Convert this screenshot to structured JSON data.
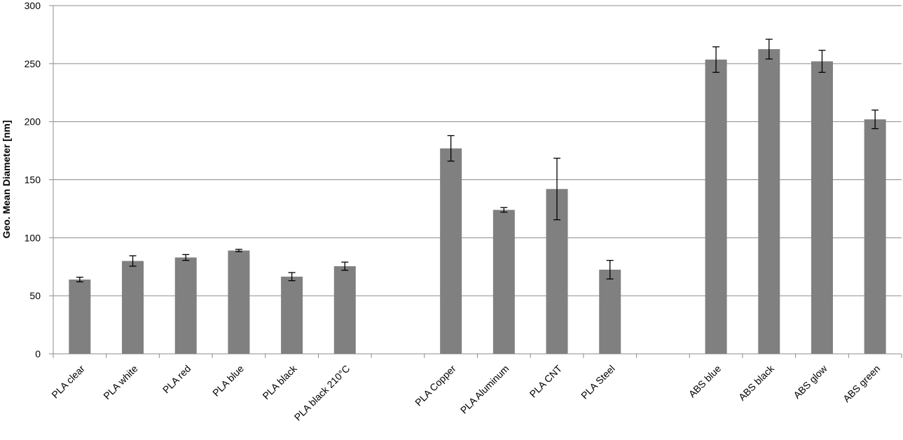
{
  "chart_data": {
    "type": "bar",
    "y_label": "Geo. Mean Diameter [nm]",
    "categories": [
      "PLA clear",
      "PLA white",
      "PLA red",
      "PLA blue",
      "PLA black",
      "PLA black 210°C",
      null,
      "PLA Copper",
      "PLA Aluminum",
      "PLA CNT",
      "PLA Steel",
      null,
      "ABS blue",
      "ABS black",
      "ABS glow",
      "ABS green"
    ],
    "values": [
      64,
      80,
      83,
      89,
      66.5,
      75.5,
      null,
      177,
      124,
      142,
      72.5,
      null,
      253.5,
      262.5,
      252,
      202
    ],
    "errors": [
      2,
      4.5,
      2.5,
      1,
      3.5,
      3.5,
      null,
      11,
      2,
      26.5,
      8,
      null,
      11,
      8.5,
      9.5,
      8
    ],
    "color": "#808080",
    "ylim": [
      0,
      300
    ],
    "yticks": [
      0,
      50,
      100,
      150,
      200,
      250,
      300
    ],
    "grid": true
  }
}
